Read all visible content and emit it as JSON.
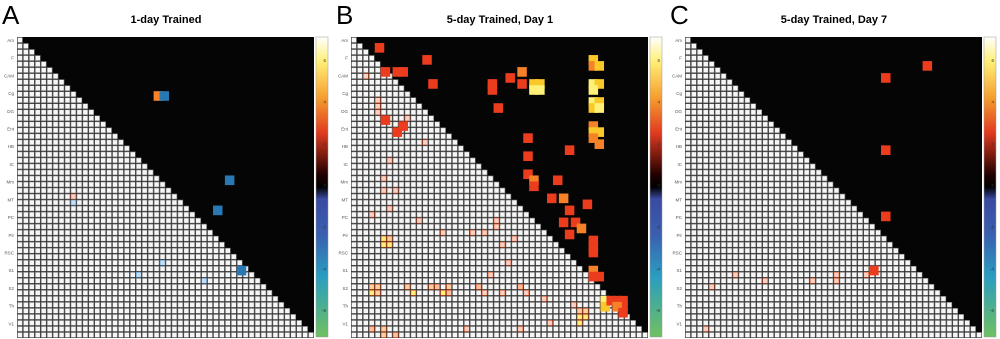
{
  "chart_data": [
    {
      "type": "heatmap",
      "panel_letter": "A",
      "title": "1-day Trained",
      "row_labels": [
        "Am",
        "F",
        "CAM",
        "Cg",
        "DG",
        "Ent",
        "HB",
        "IC",
        "Mm",
        "MT",
        "PC",
        "Pir",
        "RSC",
        "S1",
        "S2",
        "Th",
        "V1"
      ],
      "colorbar_ticks": [
        "6",
        "4",
        "2",
        "0",
        "-2",
        "-4",
        "-6"
      ],
      "significant_cells": [
        {
          "r": 9,
          "c": 23,
          "v": 4
        },
        {
          "r": 9,
          "c": 24,
          "v": -3
        },
        {
          "r": 23,
          "c": 35,
          "v": -3
        },
        {
          "r": 28,
          "c": 33,
          "v": -3
        },
        {
          "r": 38,
          "c": 37,
          "v": -3
        }
      ],
      "lower_highlights": [
        {
          "r": 26,
          "c": 9,
          "v": 2
        },
        {
          "r": 27,
          "c": 9,
          "v": -2
        },
        {
          "r": 37,
          "c": 24,
          "v": -2
        },
        {
          "r": 39,
          "c": 20,
          "v": -2
        },
        {
          "r": 40,
          "c": 31,
          "v": -2
        }
      ]
    },
    {
      "type": "heatmap",
      "panel_letter": "B",
      "title": "5-day Trained, Day 1",
      "row_labels": [
        "Am",
        "F",
        "CAM",
        "Cg",
        "DG",
        "Ent",
        "HB",
        "IC",
        "Mm",
        "MT",
        "PC",
        "Pir",
        "RSC",
        "S1",
        "S2",
        "Th",
        "V1"
      ],
      "colorbar_ticks": [
        "6",
        "4",
        "2",
        "0",
        "-2",
        "-4",
        "-6"
      ],
      "significant_cells": [
        {
          "r": 1,
          "c": 4,
          "v": 3
        },
        {
          "r": 5,
          "c": 5,
          "v": 3
        },
        {
          "r": 5,
          "c": 7,
          "v": 3
        },
        {
          "r": 5,
          "c": 8,
          "v": 3
        },
        {
          "r": 3,
          "c": 12,
          "v": 3
        },
        {
          "r": 7,
          "c": 13,
          "v": 3
        },
        {
          "r": 11,
          "c": 24,
          "v": 3
        },
        {
          "r": 7,
          "c": 23,
          "v": 3
        },
        {
          "r": 8,
          "c": 23,
          "v": 3
        },
        {
          "r": 6,
          "c": 26,
          "v": 3
        },
        {
          "r": 5,
          "c": 28,
          "v": 4
        },
        {
          "r": 7,
          "c": 28,
          "v": 3
        },
        {
          "r": 7,
          "c": 30,
          "v": 5
        },
        {
          "r": 8,
          "c": 30,
          "v": 6
        },
        {
          "r": 7,
          "c": 31,
          "v": 5
        },
        {
          "r": 8,
          "c": 31,
          "v": 6
        },
        {
          "r": 3,
          "c": 40,
          "v": 5
        },
        {
          "r": 4,
          "c": 40,
          "v": 4
        },
        {
          "r": 4,
          "c": 41,
          "v": 5
        },
        {
          "r": 7,
          "c": 40,
          "v": 6
        },
        {
          "r": 7,
          "c": 41,
          "v": 5
        },
        {
          "r": 8,
          "c": 40,
          "v": 6
        },
        {
          "r": 10,
          "c": 40,
          "v": 6
        },
        {
          "r": 10,
          "c": 41,
          "v": 5
        },
        {
          "r": 11,
          "c": 40,
          "v": 5
        },
        {
          "r": 11,
          "c": 41,
          "v": 6
        },
        {
          "r": 14,
          "c": 40,
          "v": 4
        },
        {
          "r": 15,
          "c": 40,
          "v": 5
        },
        {
          "r": 15,
          "c": 41,
          "v": 5
        },
        {
          "r": 16,
          "c": 40,
          "v": 4
        },
        {
          "r": 17,
          "c": 41,
          "v": 4
        },
        {
          "r": 16,
          "c": 29,
          "v": 3
        },
        {
          "r": 19,
          "c": 29,
          "v": 3
        },
        {
          "r": 22,
          "c": 29,
          "v": 3
        },
        {
          "r": 23,
          "c": 30,
          "v": 4
        },
        {
          "r": 24,
          "c": 30,
          "v": 3
        },
        {
          "r": 15,
          "c": 7,
          "v": 3
        },
        {
          "r": 14,
          "c": 8,
          "v": 3
        },
        {
          "r": 13,
          "c": 5,
          "v": 3
        },
        {
          "r": 18,
          "c": 36,
          "v": 3
        },
        {
          "r": 23,
          "c": 34,
          "v": 3
        },
        {
          "r": 26,
          "c": 33,
          "v": 3
        },
        {
          "r": 26,
          "c": 35,
          "v": 4
        },
        {
          "r": 27,
          "c": 39,
          "v": 3
        },
        {
          "r": 28,
          "c": 36,
          "v": 3
        },
        {
          "r": 30,
          "c": 35,
          "v": 3
        },
        {
          "r": 30,
          "c": 37,
          "v": 3
        },
        {
          "r": 31,
          "c": 38,
          "v": 4
        },
        {
          "r": 32,
          "c": 36,
          "v": 3
        },
        {
          "r": 33,
          "c": 40,
          "v": 3
        },
        {
          "r": 34,
          "c": 40,
          "v": 3
        },
        {
          "r": 35,
          "c": 40,
          "v": 3
        },
        {
          "r": 38,
          "c": 40,
          "v": 4
        },
        {
          "r": 39,
          "c": 41,
          "v": 3
        },
        {
          "r": 39,
          "c": 40,
          "v": 3
        },
        {
          "r": 43,
          "c": 42,
          "v": 6
        },
        {
          "r": 44,
          "c": 42,
          "v": 5
        },
        {
          "r": 43,
          "c": 43,
          "v": 3
        },
        {
          "r": 43,
          "c": 44,
          "v": 3
        },
        {
          "r": 43,
          "c": 45,
          "v": 3
        },
        {
          "r": 44,
          "c": 45,
          "v": 3
        },
        {
          "r": 44,
          "c": 44,
          "v": 4
        },
        {
          "r": 45,
          "c": 45,
          "v": 3
        }
      ],
      "lower_highlights": [
        {
          "r": 6,
          "c": 2,
          "v": 2
        },
        {
          "r": 10,
          "c": 4,
          "v": 2
        },
        {
          "r": 11,
          "c": 4,
          "v": 2
        },
        {
          "r": 12,
          "c": 4,
          "v": 2
        },
        {
          "r": 13,
          "c": 9,
          "v": 2
        },
        {
          "r": 17,
          "c": 12,
          "v": 2
        },
        {
          "r": 20,
          "c": 6,
          "v": 2
        },
        {
          "r": 23,
          "c": 5,
          "v": 2
        },
        {
          "r": 25,
          "c": 5,
          "v": 2
        },
        {
          "r": 25,
          "c": 7,
          "v": 2
        },
        {
          "r": 28,
          "c": 6,
          "v": 2
        },
        {
          "r": 29,
          "c": 3,
          "v": 2
        },
        {
          "r": 30,
          "c": 11,
          "v": 2
        },
        {
          "r": 30,
          "c": 24,
          "v": 2
        },
        {
          "r": 32,
          "c": 15,
          "v": 2
        },
        {
          "r": 33,
          "c": 5,
          "v": 5
        },
        {
          "r": 34,
          "c": 5,
          "v": 5
        },
        {
          "r": 33,
          "c": 6,
          "v": 4
        },
        {
          "r": 34,
          "c": 6,
          "v": 5
        },
        {
          "r": 32,
          "c": 20,
          "v": 2
        },
        {
          "r": 32,
          "c": 22,
          "v": 2
        },
        {
          "r": 31,
          "c": 24,
          "v": 2
        },
        {
          "r": 34,
          "c": 25,
          "v": 2
        },
        {
          "r": 33,
          "c": 27,
          "v": 2
        },
        {
          "r": 37,
          "c": 26,
          "v": 2
        },
        {
          "r": 39,
          "c": 23,
          "v": 2
        },
        {
          "r": 41,
          "c": 3,
          "v": 4
        },
        {
          "r": 41,
          "c": 4,
          "v": 4
        },
        {
          "r": 42,
          "c": 3,
          "v": 5
        },
        {
          "r": 42,
          "c": 4,
          "v": 4
        },
        {
          "r": 41,
          "c": 9,
          "v": 4
        },
        {
          "r": 42,
          "c": 10,
          "v": 5
        },
        {
          "r": 41,
          "c": 13,
          "v": 4
        },
        {
          "r": 41,
          "c": 14,
          "v": 3
        },
        {
          "r": 42,
          "c": 15,
          "v": 5
        },
        {
          "r": 41,
          "c": 16,
          "v": 4
        },
        {
          "r": 42,
          "c": 16,
          "v": 3
        },
        {
          "r": 41,
          "c": 21,
          "v": 3
        },
        {
          "r": 42,
          "c": 22,
          "v": 2
        },
        {
          "r": 41,
          "c": 28,
          "v": 3
        },
        {
          "r": 42,
          "c": 29,
          "v": 2
        },
        {
          "r": 42,
          "c": 25,
          "v": 2
        },
        {
          "r": 43,
          "c": 32,
          "v": 2
        },
        {
          "r": 44,
          "c": 37,
          "v": 2
        },
        {
          "r": 45,
          "c": 38,
          "v": 4
        },
        {
          "r": 46,
          "c": 38,
          "v": 5
        },
        {
          "r": 47,
          "c": 38,
          "v": 5
        },
        {
          "r": 45,
          "c": 39,
          "v": 4
        },
        {
          "r": 46,
          "c": 39,
          "v": 5
        },
        {
          "r": 48,
          "c": 3,
          "v": 3
        },
        {
          "r": 48,
          "c": 5,
          "v": 4
        },
        {
          "r": 49,
          "c": 5,
          "v": 4
        },
        {
          "r": 48,
          "c": 19,
          "v": 2
        },
        {
          "r": 48,
          "c": 28,
          "v": 2
        },
        {
          "r": 47,
          "c": 33,
          "v": 2
        },
        {
          "r": 50,
          "c": 21,
          "v": 2
        },
        {
          "r": 49,
          "c": 7,
          "v": 3
        }
      ]
    },
    {
      "type": "heatmap",
      "panel_letter": "C",
      "title": "5-day Trained, Day 7",
      "row_labels": [
        "Am",
        "F",
        "CAM",
        "Cg",
        "DG",
        "Ent",
        "HB",
        "IC",
        "Mm",
        "MT",
        "PC",
        "Pir",
        "RSC",
        "S1",
        "S2",
        "Th",
        "V1"
      ],
      "colorbar_ticks": [
        "6",
        "4",
        "2",
        "0",
        "-2",
        "-4",
        "-6"
      ],
      "significant_cells": [
        {
          "r": 4,
          "c": 40,
          "v": 3
        },
        {
          "r": 6,
          "c": 33,
          "v": 3
        },
        {
          "r": 18,
          "c": 33,
          "v": 3
        },
        {
          "r": 29,
          "c": 33,
          "v": 3
        },
        {
          "r": 38,
          "c": 31,
          "v": 3
        }
      ],
      "lower_highlights": [
        {
          "r": 41,
          "c": 4,
          "v": 2
        },
        {
          "r": 40,
          "c": 13,
          "v": 2
        },
        {
          "r": 39,
          "c": 8,
          "v": 2
        },
        {
          "r": 40,
          "c": 21,
          "v": 2
        },
        {
          "r": 39,
          "c": 25,
          "v": 2
        },
        {
          "r": 40,
          "c": 25,
          "v": 2
        },
        {
          "r": 39,
          "c": 30,
          "v": 2
        },
        {
          "r": 48,
          "c": 3,
          "v": 2
        }
      ]
    }
  ]
}
